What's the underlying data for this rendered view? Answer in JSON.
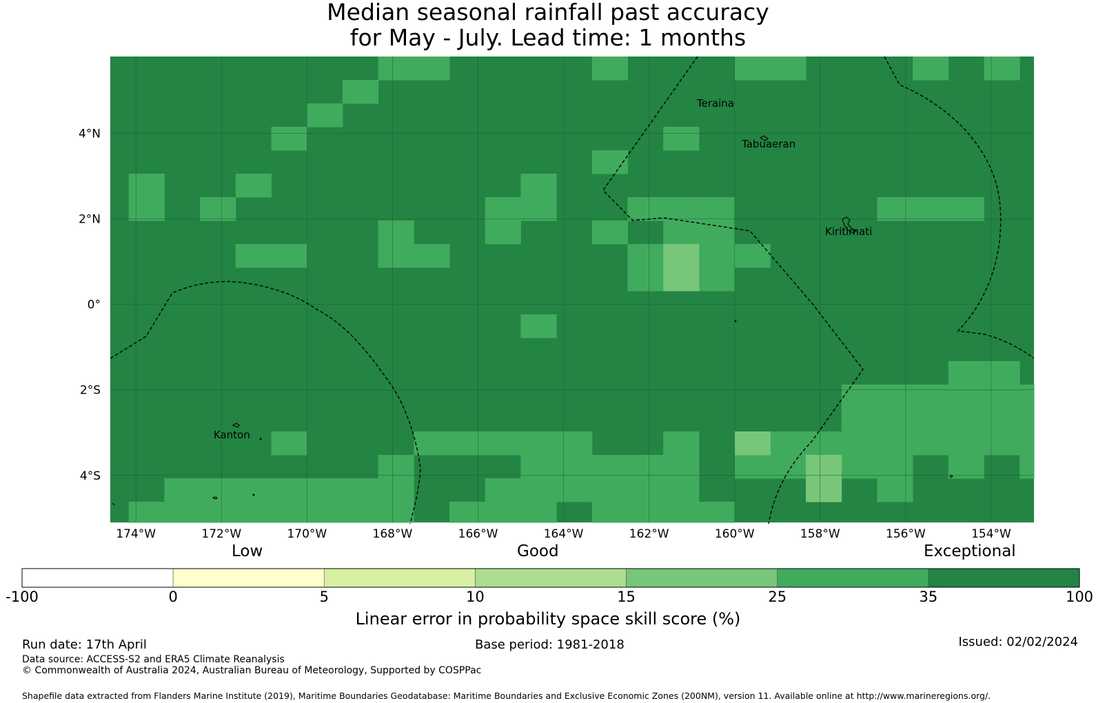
{
  "title": {
    "line1": "Median seasonal rainfall past accuracy",
    "line2": "for May - July. Lead time: 1 months"
  },
  "map": {
    "lon_range": [
      -174.6,
      -153.0
    ],
    "lat_range": [
      -5.1,
      5.8
    ],
    "grid_cell_deg": 0.833,
    "x_ticks": [
      {
        "value": -174,
        "label": "174°W"
      },
      {
        "value": -172,
        "label": "172°W"
      },
      {
        "value": -170,
        "label": "170°W"
      },
      {
        "value": -168,
        "label": "168°W"
      },
      {
        "value": -166,
        "label": "166°W"
      },
      {
        "value": -164,
        "label": "164°W"
      },
      {
        "value": -162,
        "label": "162°W"
      },
      {
        "value": -160,
        "label": "160°W"
      },
      {
        "value": -158,
        "label": "158°W"
      },
      {
        "value": -156,
        "label": "156°W"
      },
      {
        "value": -154,
        "label": "154°W"
      }
    ],
    "y_ticks": [
      {
        "value": 4,
        "label": "4°N"
      },
      {
        "value": 2,
        "label": "2°N"
      },
      {
        "value": 0,
        "label": "0°"
      },
      {
        "value": -2,
        "label": "2°S"
      },
      {
        "value": -4,
        "label": "4°S"
      }
    ],
    "places": [
      {
        "name": "Teraina",
        "label": "Teraina",
        "lon": -160.4,
        "lat": 4.7
      },
      {
        "name": "Tabuaeran",
        "label": "Tabuaeran",
        "lon": -159.35,
        "lat": 3.75
      },
      {
        "name": "Kiritimati",
        "label": "Kiritimati",
        "lon": -157.4,
        "lat": 1.7
      },
      {
        "name": "Kanton",
        "label": "Kanton",
        "lon": -171.7,
        "lat": -3.05
      }
    ],
    "colors": {
      "band_35_100": "#238443",
      "band_25_35": "#41ab5d",
      "band_15_25": "#78c679",
      "band_10_15": "#addd8e",
      "band_5_10": "#d9f0a3",
      "band_0_5": "#ffffcc",
      "band_neg": "#ffffff"
    }
  },
  "colorbar": {
    "categories": [
      "Low",
      "Good",
      "Exceptional"
    ],
    "ticks": [
      "-100",
      "0",
      "5",
      "10",
      "15",
      "25",
      "35",
      "100"
    ],
    "colors": [
      "#ffffff",
      "#ffffcc",
      "#d9f0a3",
      "#addd8e",
      "#78c679",
      "#41ab5d",
      "#238443"
    ],
    "title": "Linear error in probability space skill score (%)"
  },
  "footer": {
    "run_date": "Run date: 17th April",
    "base_period": "Base period: 1981-2018",
    "issued": "Issued: 02/02/2024",
    "data_source": "Data source: ACCESS-S2 and ERA5 Climate Reanalysis",
    "copyright": "© Commonwealth of Australia 2024, Australian Bureau of Meteorology, Supported by COSPPac",
    "shapefile": "Shapefile data extracted from Flanders Marine Institute (2019), Maritime Boundaries Geodatabase: Maritime Boundaries and Exclusive Economic Zones (200NM), version 11. Available online at http://www.marineregions.org/."
  }
}
